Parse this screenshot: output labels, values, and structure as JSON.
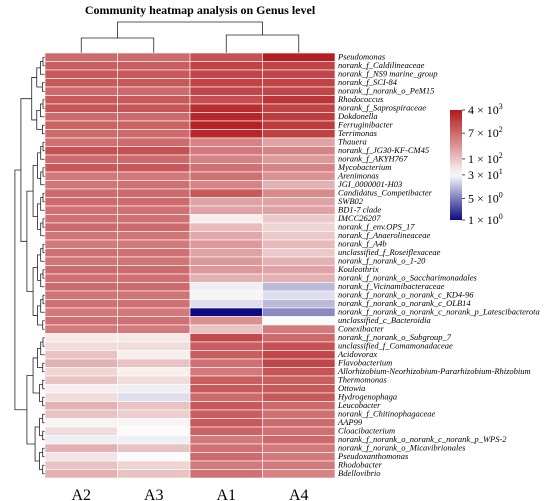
{
  "chart_data": {
    "type": "heatmap",
    "title": "Community heatmap analysis on Genus level",
    "columns": [
      "A2",
      "A3",
      "A1",
      "A4"
    ],
    "rows": [
      "Pseudomonas",
      "norank_f_Caldilineaceae",
      "norank_f_NS9 marine_group",
      "norank_f_SCI-84",
      "norank_f_norank_o_PeM15",
      "Rhodococcus",
      "norank_f_Saprospiraceae",
      "Dokdonella",
      "Ferruginibacter",
      "Terrimonas",
      "Thauera",
      "norank_f_JG30-KF-CM45",
      "norank_f_AKYH767",
      "Mycobacterium",
      "Arenimonas",
      "JGI_0000001-H03",
      "Candidatus_Competibacter",
      "SWB02",
      "BD1-7 clade",
      "IMCC26207",
      "norank_f_env.OPS_17",
      "norank_f_Anaerolineaceae",
      "norank_f_A4b",
      "unclassified_f_Roseiflexaceae",
      "norank_f_norank_o_1-20",
      "Kouleothrix",
      "norank_f_norank_o_Saccharimonadales",
      "norank_f_Vicinamibacteraceae",
      "norank_f_norank_o_norank_c_KD4-96",
      "norank_f_norank_o_norank_c_OLB14",
      "norank_f_norank_o_norank_c_norank_p_Latescibacterota",
      "unclassified_c_Bacteroidia",
      "Conexibacter",
      "norank_f_norank_o_Subgroup_7",
      "unclassified_f_Comamonadaceae",
      "Acidovorax",
      "Flavobacterium",
      "Allorhizobium-Neorhizobium-Pararhizobium-Rhizobium",
      "Thermomonas",
      "Ottowia",
      "Hydrogenophaga",
      "Leucobacter",
      "norank_f_Chitinophagaceae",
      "AAP99",
      "Cloacibacterium",
      "norank_f_norank_o_norank_c_norank_p_WPS-2",
      "norank_f_norank_o_Micavibrionales",
      "Pseudoxanthomonas",
      "Rhodobacter",
      "Bdellovibrio"
    ],
    "values": [
      [
        700,
        700,
        1200,
        3500
      ],
      [
        900,
        900,
        1600,
        1600
      ],
      [
        1000,
        1000,
        1500,
        1500
      ],
      [
        1000,
        1000,
        1600,
        1600
      ],
      [
        700,
        700,
        1500,
        1500
      ],
      [
        1000,
        1000,
        1300,
        2200
      ],
      [
        1100,
        1100,
        2600,
        1600
      ],
      [
        700,
        700,
        3000,
        1900
      ],
      [
        800,
        800,
        3200,
        1900
      ],
      [
        700,
        700,
        3000,
        1700
      ],
      [
        600,
        700,
        400,
        200
      ],
      [
        1200,
        1200,
        500,
        400
      ],
      [
        700,
        700,
        400,
        250
      ],
      [
        1000,
        1000,
        600,
        400
      ],
      [
        500,
        500,
        600,
        300
      ],
      [
        550,
        600,
        400,
        150
      ],
      [
        700,
        700,
        1000,
        350
      ],
      [
        700,
        700,
        200,
        200
      ],
      [
        600,
        600,
        200,
        200
      ],
      [
        600,
        600,
        40,
        90
      ],
      [
        700,
        700,
        120,
        70
      ],
      [
        550,
        550,
        180,
        90
      ],
      [
        500,
        500,
        250,
        120
      ],
      [
        600,
        600,
        200,
        90
      ],
      [
        550,
        550,
        250,
        150
      ],
      [
        700,
        700,
        250,
        200
      ],
      [
        600,
        600,
        150,
        150
      ],
      [
        700,
        700,
        25,
        12
      ],
      [
        550,
        550,
        35,
        20
      ],
      [
        600,
        600,
        20,
        12
      ],
      [
        500,
        500,
        1,
        6
      ],
      [
        600,
        600,
        300,
        30
      ],
      [
        500,
        500,
        100,
        500
      ],
      [
        45,
        45,
        1400,
        700
      ],
      [
        60,
        60,
        900,
        1200
      ],
      [
        100,
        40,
        900,
        1500
      ],
      [
        150,
        100,
        600,
        1500
      ],
      [
        70,
        40,
        500,
        1100
      ],
      [
        100,
        60,
        900,
        900
      ],
      [
        40,
        25,
        1000,
        1000
      ],
      [
        60,
        20,
        700,
        1000
      ],
      [
        150,
        100,
        1000,
        700
      ],
      [
        100,
        80,
        900,
        600
      ],
      [
        35,
        35,
        1000,
        700
      ],
      [
        60,
        30,
        800,
        600
      ],
      [
        25,
        25,
        500,
        700
      ],
      [
        150,
        100,
        600,
        500
      ],
      [
        50,
        30,
        700,
        500
      ],
      [
        100,
        70,
        500,
        500
      ],
      [
        150,
        100,
        600,
        400
      ]
    ],
    "color_scale": {
      "type": "log",
      "min": 1,
      "max": 4000,
      "stops": [
        {
          "value": 1,
          "color": "#0d0b80"
        },
        {
          "value": 30,
          "color": "#fbfbfb"
        },
        {
          "value": 4000,
          "color": "#b3191c"
        }
      ]
    },
    "legend": {
      "ticks": [
        {
          "label": "4 × 10",
          "exp": "3",
          "value": 4000
        },
        {
          "label": "7 × 10",
          "exp": "2",
          "value": 700
        },
        {
          "label": "1 × 10",
          "exp": "2",
          "value": 100
        },
        {
          "label": "3 × 10",
          "exp": "1",
          "value": 30
        },
        {
          "label": "5 × 10",
          "exp": "0",
          "value": 5
        },
        {
          "label": "1 × 10",
          "exp": "0",
          "value": 1
        }
      ]
    },
    "column_dendrogram": true,
    "row_dendrogram": true
  }
}
